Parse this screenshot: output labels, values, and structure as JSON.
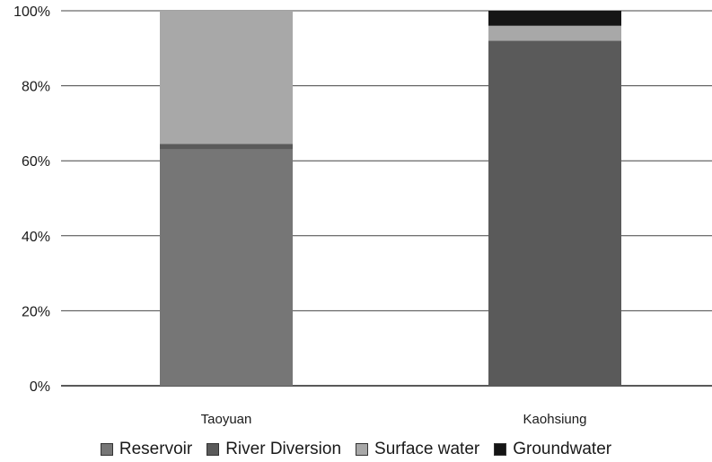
{
  "chart_data": {
    "type": "bar",
    "stacked": true,
    "categories": [
      "Taoyuan",
      "Kaohsiung"
    ],
    "series": [
      {
        "name": "Reservoir",
        "color": "#767676",
        "values": [
          63,
          0
        ]
      },
      {
        "name": "River Diversion",
        "color": "#5a5a5a",
        "values": [
          1.5,
          92
        ]
      },
      {
        "name": "Surface water",
        "color": "#a8a8a8",
        "values": [
          35.5,
          4
        ]
      },
      {
        "name": "Groundwater",
        "color": "#151515",
        "values": [
          0,
          4
        ]
      }
    ],
    "ylim": [
      0,
      100
    ],
    "yticks": [
      "0%",
      "20%",
      "40%",
      "60%",
      "80%",
      "100%"
    ],
    "grid": true,
    "legend_position": "bottom",
    "title": "",
    "xlabel": "",
    "ylabel": ""
  }
}
